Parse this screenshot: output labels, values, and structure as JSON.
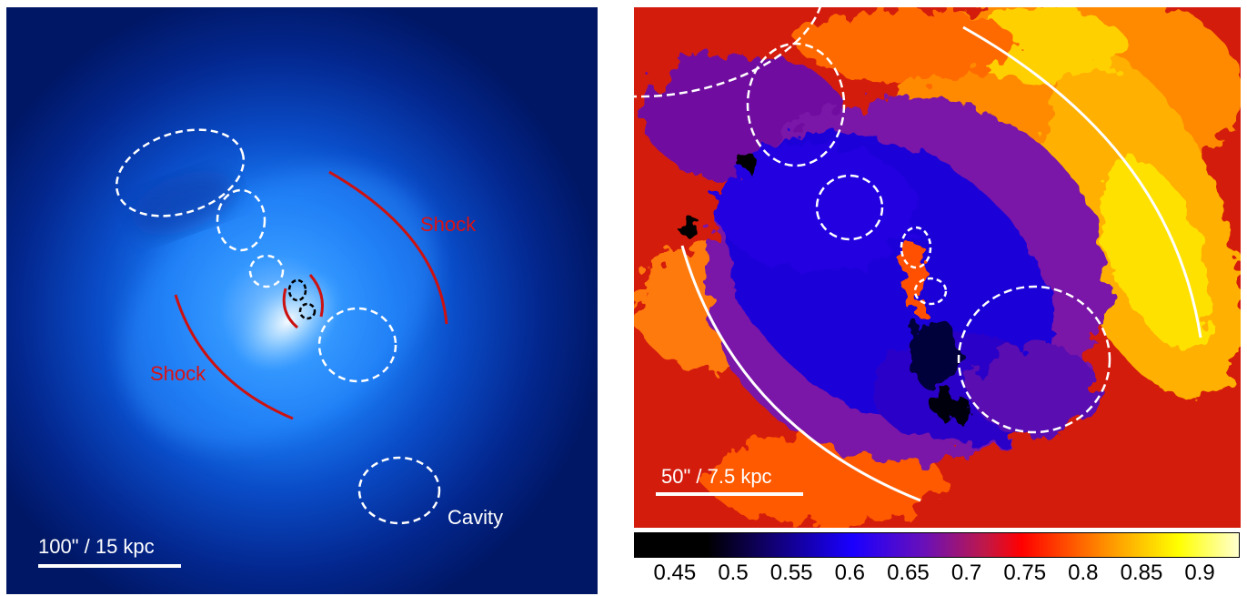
{
  "left_panel": {
    "labels": {
      "shock_upper": "Shock",
      "shock_lower": "Shock",
      "cavity": "Cavity"
    },
    "scale_bar": "100\" / 15 kpc",
    "colors": {
      "background": "#001a66",
      "core": "#e8f6ff",
      "shock": "#cc1111",
      "region": "#ffffff"
    }
  },
  "right_panel": {
    "scale_bar": "50\" / 7.5 kpc",
    "colors": {
      "low": "#000000",
      "mid": "#1a00e6",
      "high": "#ff2200",
      "top": "#ffff80"
    }
  },
  "colorbar": {
    "ticks": [
      "0.45",
      "0.5",
      "0.55",
      "0.6",
      "0.65",
      "0.7",
      "0.75",
      "0.8",
      "0.85",
      "0.9"
    ],
    "range": [
      0.415,
      0.935
    ]
  }
}
